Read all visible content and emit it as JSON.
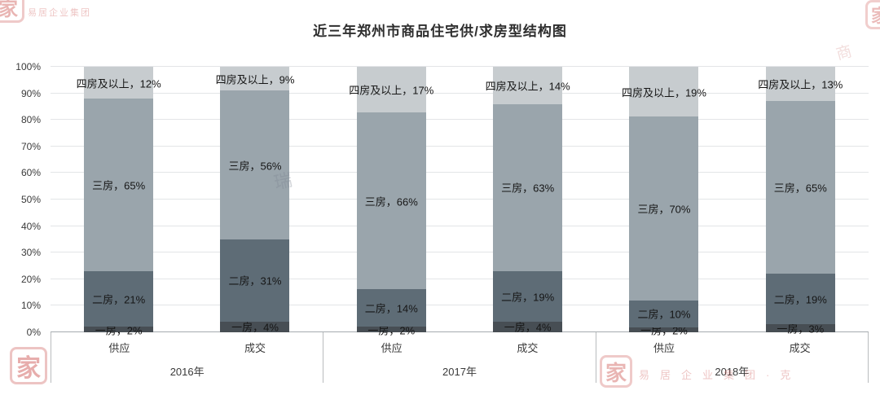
{
  "chart_data": {
    "type": "bar",
    "stacked": true,
    "percent_stacked": true,
    "title": "近三年郑州市商品住宅供/求房型结构图",
    "group_labels": [
      "2016年",
      "2017年",
      "2018年"
    ],
    "categories": [
      "供应",
      "成交",
      "供应",
      "成交",
      "供应",
      "成交"
    ],
    "series": [
      {
        "name": "一房",
        "color": "#474e54",
        "values": [
          2,
          4,
          2,
          4,
          2,
          3
        ]
      },
      {
        "name": "二房",
        "color": "#5e6c76",
        "values": [
          21,
          31,
          14,
          19,
          10,
          19
        ]
      },
      {
        "name": "三房",
        "color": "#9aa5ac",
        "values": [
          65,
          56,
          66,
          63,
          70,
          65
        ]
      },
      {
        "name": "四房及以上",
        "color": "#c7cccf",
        "values": [
          12,
          9,
          17,
          14,
          19,
          13
        ]
      }
    ],
    "ylim": [
      0,
      100
    ],
    "y_ticks": [
      "0%",
      "10%",
      "20%",
      "30%",
      "40%",
      "50%",
      "60%",
      "70%",
      "80%",
      "90%",
      "100%"
    ],
    "label_separator": "，",
    "grid": true,
    "legend": "none"
  },
  "watermark": {
    "logo_char": "家",
    "company": "易居企业集团",
    "company_bottom": "易居企业集团·克",
    "faint_char": "瑞",
    "faint_char2": "商"
  }
}
